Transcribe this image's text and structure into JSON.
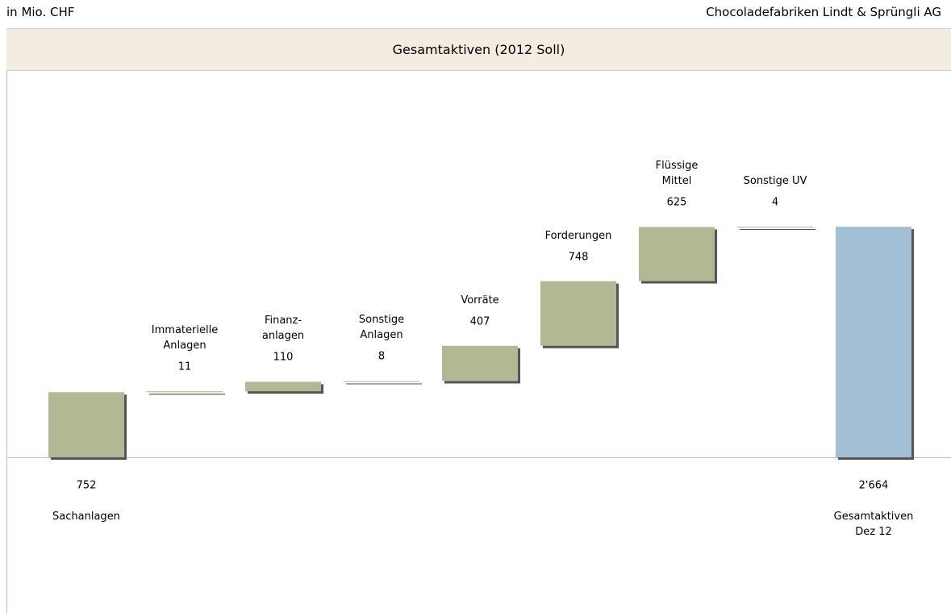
{
  "header": {
    "left": "in Mio. CHF",
    "right": "Chocoladefabriken Lindt & Sprüngli AG"
  },
  "chart_data": {
    "type": "waterfall",
    "title": "Gesamtaktiven (2012 Soll)",
    "categories": [
      "Sachanlagen",
      "Immaterielle\nAnlagen",
      "Finanz-\nanlagen",
      "Sonstige\nAnlagen",
      "Vorräte",
      "Forderungen",
      "Flüssige\nMittel",
      "Sonstige UV",
      "Gesamtaktiven\nDez 12"
    ],
    "values": [
      752,
      11,
      110,
      8,
      407,
      748,
      625,
      4,
      2664
    ],
    "value_labels": [
      "752",
      "11",
      "110",
      "8",
      "407",
      "748",
      "625",
      "4",
      "2'664"
    ],
    "measure": [
      "relative",
      "relative",
      "relative",
      "relative",
      "relative",
      "relative",
      "relative",
      "relative",
      "total"
    ],
    "color": "#b2b894",
    "total_color": "#a3bfd6"
  }
}
